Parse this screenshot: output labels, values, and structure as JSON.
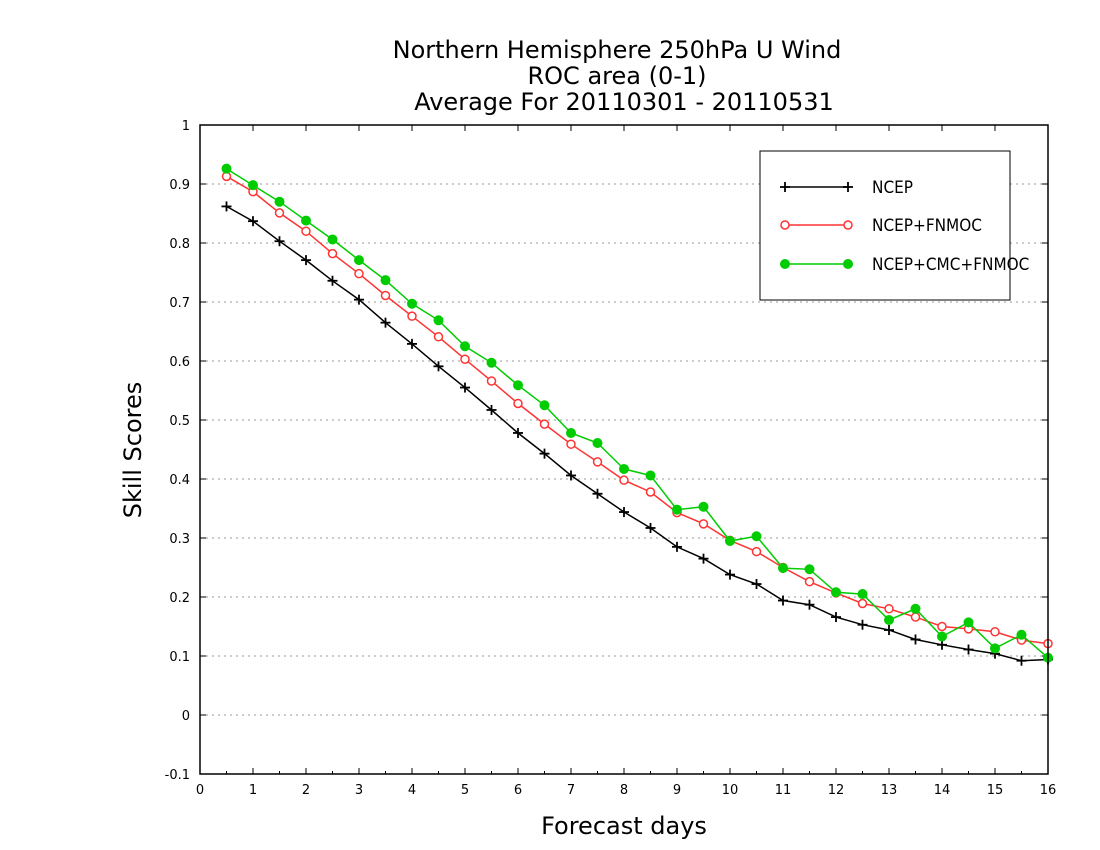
{
  "chart_data": {
    "type": "line",
    "title": [
      "Northern Hemisphere 250hPa U Wind",
      "ROC area (0-1)",
      "Average For 20110301 - 20110531"
    ],
    "xlabel": "Forecast days",
    "ylabel": "Skill Scores",
    "xlim": [
      0,
      16
    ],
    "ylim": [
      -0.1,
      1
    ],
    "xticks": [
      0,
      1,
      2,
      3,
      4,
      5,
      6,
      7,
      8,
      9,
      10,
      11,
      12,
      13,
      14,
      15,
      16
    ],
    "yticks": [
      -0.1,
      0,
      0.1,
      0.2,
      0.3,
      0.4,
      0.5,
      0.6,
      0.7,
      0.8,
      0.9,
      1
    ],
    "ytick_labels": [
      "-0.1",
      "0",
      "0.1",
      "0.2",
      "0.3",
      "0.4",
      "0.5",
      "0.6",
      "0.7",
      "0.8",
      "0.9",
      "1"
    ],
    "grid": "horizontal dotted",
    "legend_position": "top-right",
    "x": [
      0.5,
      1,
      1.5,
      2,
      2.5,
      3,
      3.5,
      4,
      4.5,
      5,
      5.5,
      6,
      6.5,
      7,
      7.5,
      8,
      8.5,
      9,
      9.5,
      10,
      10.5,
      11,
      11.5,
      12,
      12.5,
      13,
      13.5,
      14,
      14.5,
      15,
      15.5,
      16
    ],
    "series": [
      {
        "name": "NCEP",
        "color": "#000000",
        "marker": "plus",
        "values": [
          0.862,
          0.837,
          0.803,
          0.771,
          0.736,
          0.704,
          0.665,
          0.629,
          0.591,
          0.555,
          0.517,
          0.478,
          0.443,
          0.406,
          0.375,
          0.344,
          0.317,
          0.285,
          0.265,
          0.238,
          0.222,
          0.194,
          0.187,
          0.166,
          0.153,
          0.144,
          0.128,
          0.119,
          0.111,
          0.104,
          0.092,
          0.094
        ]
      },
      {
        "name": "NCEP+FNMOC",
        "color": "#ff3333",
        "marker": "open-circle",
        "values": [
          0.913,
          0.887,
          0.851,
          0.82,
          0.782,
          0.748,
          0.711,
          0.676,
          0.641,
          0.603,
          0.566,
          0.528,
          0.493,
          0.459,
          0.429,
          0.398,
          0.378,
          0.343,
          0.324,
          0.296,
          0.277,
          0.25,
          0.226,
          0.207,
          0.189,
          0.18,
          0.166,
          0.15,
          0.146,
          0.141,
          0.127,
          0.121
        ]
      },
      {
        "name": "NCEP+CMC+FNMOC",
        "color": "#00cc00",
        "marker": "filled-circle",
        "values": [
          0.926,
          0.898,
          0.87,
          0.838,
          0.806,
          0.771,
          0.737,
          0.697,
          0.669,
          0.625,
          0.597,
          0.559,
          0.525,
          0.478,
          0.461,
          0.417,
          0.406,
          0.348,
          0.353,
          0.295,
          0.303,
          0.249,
          0.247,
          0.208,
          0.205,
          0.161,
          0.18,
          0.133,
          0.157,
          0.113,
          0.136,
          0.097
        ]
      }
    ]
  }
}
